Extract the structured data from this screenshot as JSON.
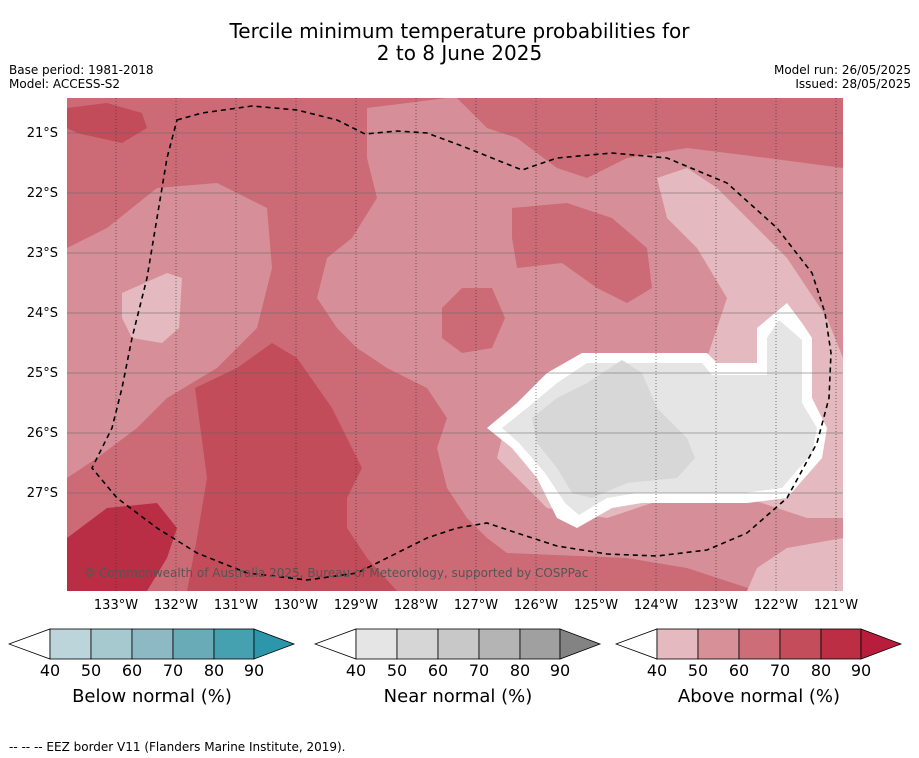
{
  "title_line1": "Tercile minimum temperature probabilities for",
  "title_line2": "2 to 8 June 2025",
  "base_period": "Base period: 1981-2018",
  "model": "Model: ACCESS-S2",
  "model_run": "Model run: 26/05/2025",
  "issued": "Issued: 28/05/2025",
  "copyright": "© Commonwealth of Australia 2025, Bureau of Meteorology, supported by COSPPac",
  "footer_legend": "--  --  -- EEZ border V11 (Flanders Marine Institute, 2019).",
  "lat_labels": [
    "21°S",
    "22°S",
    "23°S",
    "24°S",
    "25°S",
    "26°S",
    "27°S"
  ],
  "lon_labels": [
    "133°W",
    "132°W",
    "131°W",
    "130°W",
    "129°W",
    "128°W",
    "127°W",
    "126°W",
    "125°W",
    "124°W",
    "123°W",
    "122°W",
    "121°W"
  ],
  "colorbars": [
    {
      "title": "Below normal (%)",
      "ticks": [
        "40",
        "50",
        "60",
        "70",
        "80",
        "90"
      ],
      "colors": [
        "#ffffff",
        "#bcd5db",
        "#a6c8cf",
        "#8cb9c3",
        "#6aabb8",
        "#45a0b0",
        "#2c96aa"
      ]
    },
    {
      "title": "Near normal (%)",
      "ticks": [
        "40",
        "50",
        "60",
        "70",
        "80",
        "90"
      ],
      "colors": [
        "#ffffff",
        "#e5e5e5",
        "#d6d6d6",
        "#c8c8c8",
        "#b4b4b4",
        "#a0a0a0",
        "#838383"
      ]
    },
    {
      "title": "Above normal (%)",
      "ticks": [
        "40",
        "50",
        "60",
        "70",
        "80",
        "90"
      ],
      "colors": [
        "#ffffff",
        "#e4b9bf",
        "#d89098",
        "#cc6d77",
        "#c34d5a",
        "#bb2e43",
        "#b91d3c"
      ]
    }
  ],
  "colors": {
    "above_40": "#e4b9bf",
    "above_50": "#d68f98",
    "above_60": "#cc6b76",
    "above_70": "#c24c59",
    "above_80": "#b92e44",
    "near_40": "#e5e5e5",
    "near_50": "#d7d7d7",
    "eez_border": "#000000"
  }
}
